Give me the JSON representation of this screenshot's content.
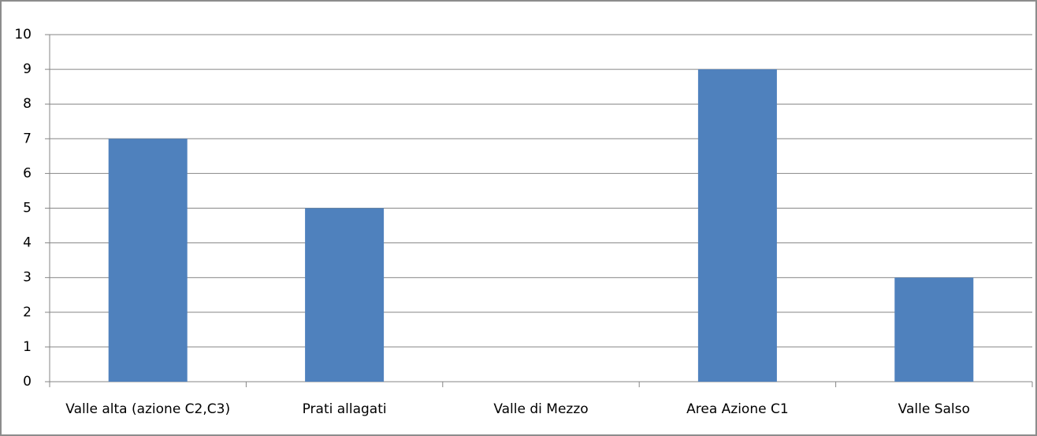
{
  "chart_data": {
    "type": "bar",
    "categories": [
      "Valle alta (azione C2,C3)",
      "Prati allagati",
      "Valle di Mezzo",
      "Area Azione C1",
      "Valle Salso"
    ],
    "values": [
      7,
      5,
      0,
      9,
      3
    ],
    "color": "#4f81bd",
    "ylim": [
      0,
      10
    ],
    "yticks": [
      0,
      1,
      2,
      3,
      4,
      5,
      6,
      7,
      8,
      9,
      10
    ],
    "grid": true
  }
}
